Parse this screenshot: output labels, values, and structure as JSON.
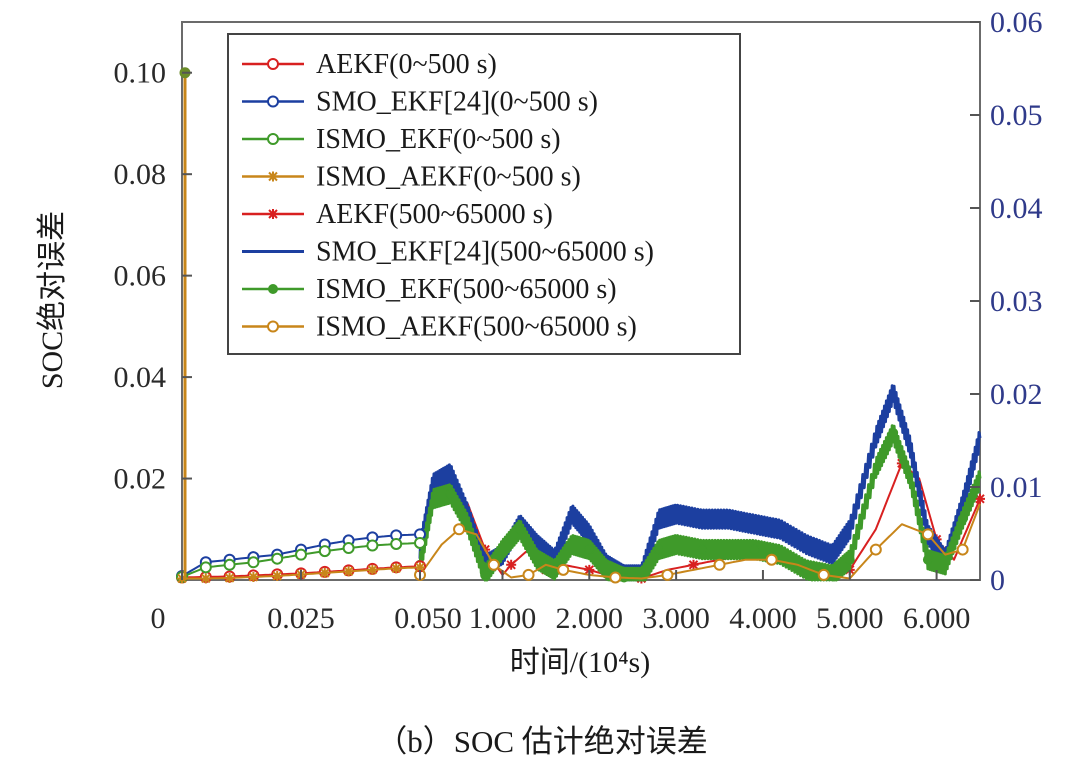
{
  "caption": "（b）SOC 估计绝对误差",
  "chart_data": {
    "type": "line",
    "title": "",
    "xlabel": "时间/(10⁴s)",
    "ylabel": "SOC绝对误差",
    "x_tick_labels": [
      "0",
      "0.025",
      "0.050",
      "1.000",
      "2.000",
      "3.000",
      "4.000",
      "5.000",
      "6.000"
    ],
    "x_scale": "piecewise: 0–0.050 then 0.050–6.500 (×10⁴ s)",
    "y_left": {
      "ticks": [
        "0.02",
        "0.04",
        "0.06",
        "0.08",
        "0.10"
      ],
      "range": [
        0,
        0.11
      ]
    },
    "y_right": {
      "ticks": [
        "0",
        "0.01",
        "0.02",
        "0.03",
        "0.04",
        "0.05",
        "0.06"
      ],
      "range": [
        0,
        0.06
      ]
    },
    "legend_position": "top-left",
    "legend": [
      {
        "label": "AEKF(0~500 s)",
        "color": "#d82020",
        "marker": "open-circle"
      },
      {
        "label": "SMO_EKF[24](0~500 s)",
        "color": "#1c3fa0",
        "marker": "open-circle"
      },
      {
        "label": "ISMO_EKF(0~500 s)",
        "color": "#3f9a2a",
        "marker": "open-circle"
      },
      {
        "label": "ISMO_AEKF(0~500 s)",
        "color": "#c8861a",
        "marker": "star"
      },
      {
        "label": "AEKF(500~65000 s)",
        "color": "#d82020",
        "marker": "star"
      },
      {
        "label": "SMO_EKF[24](500~65000 s)",
        "color": "#1c3fa0",
        "marker": "none"
      },
      {
        "label": "ISMO_EKF(500~65000 s)",
        "color": "#3f9a2a",
        "marker": "filled-circle"
      },
      {
        "label": "ISMO_AEKF(500~65000 s)",
        "color": "#c8861a",
        "marker": "open-circle"
      }
    ],
    "series_first_segment": [
      {
        "name": "AEKF(0~500 s)",
        "x": [
          0,
          0.005,
          0.01,
          0.015,
          0.02,
          0.025,
          0.03,
          0.035,
          0.04,
          0.045,
          0.05
        ],
        "y": [
          0.0005,
          0.0006,
          0.0007,
          0.0009,
          0.0011,
          0.0013,
          0.0016,
          0.0019,
          0.0022,
          0.0025,
          0.0027
        ]
      },
      {
        "name": "SMO_EKF[24](0~500 s)",
        "x": [
          0,
          0.005,
          0.01,
          0.015,
          0.02,
          0.025,
          0.03,
          0.035,
          0.04,
          0.045,
          0.05
        ],
        "y": [
          0.0008,
          0.0035,
          0.004,
          0.0045,
          0.005,
          0.006,
          0.007,
          0.0078,
          0.0084,
          0.0088,
          0.009
        ]
      },
      {
        "name": "ISMO_EKF(0~500 s)",
        "x": [
          0,
          0.005,
          0.01,
          0.015,
          0.02,
          0.025,
          0.03,
          0.035,
          0.04,
          0.045,
          0.05
        ],
        "y": [
          0.0006,
          0.0025,
          0.003,
          0.0035,
          0.0042,
          0.005,
          0.0057,
          0.0063,
          0.0068,
          0.0071,
          0.0073
        ]
      },
      {
        "name": "ISMO_AEKF(0~500 s)",
        "x": [
          0,
          0.005,
          0.01,
          0.015,
          0.02,
          0.025,
          0.03,
          0.035,
          0.04,
          0.045,
          0.05
        ],
        "y": [
          0.0003,
          0.0003,
          0.0004,
          0.0006,
          0.0008,
          0.0011,
          0.0014,
          0.0017,
          0.002,
          0.0023,
          0.0025
        ]
      }
    ],
    "series_second_segment": [
      {
        "name": "AEKF(500~65000 s)",
        "x": [
          0.05,
          0.2,
          0.4,
          0.6,
          0.8,
          1.0,
          1.1,
          1.3,
          1.5,
          1.7,
          2.0,
          2.3,
          2.6,
          2.9,
          3.2,
          3.5,
          3.8,
          4.1,
          4.4,
          4.7,
          5.0,
          5.3,
          5.6,
          5.8,
          6.0,
          6.2,
          6.5
        ],
        "y": [
          0.001,
          0.016,
          0.019,
          0.015,
          0.006,
          0.001,
          0.003,
          0.006,
          0.002,
          0.003,
          0.002,
          0.0005,
          0.0003,
          0.002,
          0.003,
          0.004,
          0.005,
          0.004,
          0.003,
          0.001,
          0.002,
          0.01,
          0.023,
          0.02,
          0.008,
          0.004,
          0.016
        ]
      },
      {
        "name": "SMO_EKF[24](500~65000 s)",
        "x": [
          0.05,
          0.2,
          0.4,
          0.6,
          0.8,
          1.0,
          1.2,
          1.4,
          1.6,
          1.8,
          2.0,
          2.2,
          2.4,
          2.6,
          2.8,
          3.0,
          3.3,
          3.6,
          3.9,
          4.2,
          4.5,
          4.8,
          5.0,
          5.3,
          5.5,
          5.7,
          5.9,
          6.1,
          6.3,
          6.5
        ],
        "y": [
          0.006,
          0.019,
          0.021,
          0.013,
          0.003,
          0.005,
          0.011,
          0.007,
          0.004,
          0.013,
          0.009,
          0.003,
          0.001,
          0.001,
          0.012,
          0.013,
          0.012,
          0.012,
          0.011,
          0.01,
          0.007,
          0.005,
          0.01,
          0.028,
          0.037,
          0.026,
          0.009,
          0.004,
          0.015,
          0.028
        ]
      },
      {
        "name": "ISMO_EKF(500~65000 s)",
        "x": [
          0.05,
          0.2,
          0.4,
          0.6,
          0.8,
          1.0,
          1.2,
          1.4,
          1.6,
          1.8,
          2.0,
          2.2,
          2.4,
          2.6,
          2.8,
          3.0,
          3.3,
          3.6,
          3.9,
          4.2,
          4.5,
          4.8,
          5.0,
          5.3,
          5.5,
          5.7,
          5.9,
          6.1,
          6.3,
          6.5
        ],
        "y": [
          0.003,
          0.016,
          0.017,
          0.011,
          0.001,
          0.006,
          0.01,
          0.004,
          0.002,
          0.007,
          0.006,
          0.002,
          0.0005,
          0.0005,
          0.006,
          0.007,
          0.006,
          0.006,
          0.006,
          0.005,
          0.002,
          0.001,
          0.004,
          0.022,
          0.029,
          0.02,
          0.004,
          0.003,
          0.012,
          0.02
        ]
      },
      {
        "name": "ISMO_AEKF(500~65000 s)",
        "x": [
          0.05,
          0.3,
          0.5,
          0.7,
          0.9,
          1.1,
          1.3,
          1.5,
          1.7,
          2.0,
          2.3,
          2.6,
          2.9,
          3.2,
          3.5,
          3.8,
          4.1,
          4.4,
          4.7,
          5.0,
          5.3,
          5.6,
          5.9,
          6.1,
          6.3,
          6.5
        ],
        "y": [
          0.001,
          0.007,
          0.01,
          0.009,
          0.003,
          0.0005,
          0.001,
          0.003,
          0.002,
          0.001,
          0.0005,
          0.0003,
          0.001,
          0.002,
          0.003,
          0.004,
          0.004,
          0.003,
          0.001,
          0.0003,
          0.006,
          0.011,
          0.009,
          0.005,
          0.006,
          0.015
        ]
      }
    ]
  }
}
